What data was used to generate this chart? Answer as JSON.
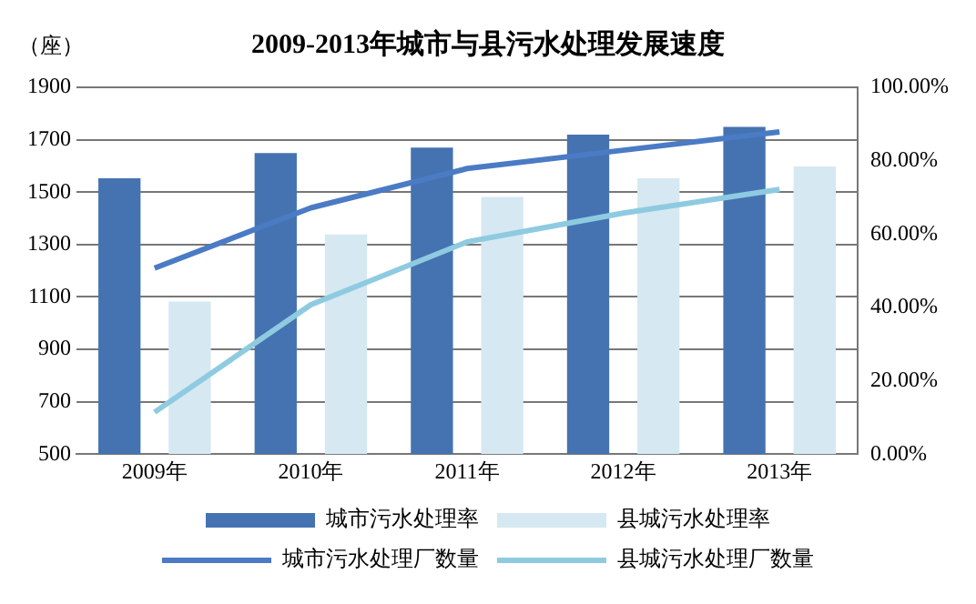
{
  "chart_data": {
    "type": "bar",
    "title": "2009-2013年城市与县污水处理发展速度",
    "ylabel": "（座）",
    "categories": [
      "2009年",
      "2010年",
      "2011年",
      "2012年",
      "2013年"
    ],
    "series": [
      {
        "name": "城市污水处理率",
        "axis": "y2",
        "color": "#4573b1",
        "values": [
          75.2,
          82.1,
          83.6,
          87.1,
          89.2
        ]
      },
      {
        "name": "县城污水处理率",
        "axis": "y2",
        "color": "#d6e8f2",
        "values": [
          41.6,
          59.9,
          70.1,
          75.2,
          78.4
        ]
      },
      {
        "name": "城市污水处理厂数量",
        "type": "line",
        "axis": "y",
        "color": "#4a7bc4",
        "values": [
          1210,
          1440,
          1590,
          1660,
          1730
        ]
      },
      {
        "name": "县城污水处理厂数量",
        "type": "line",
        "axis": "y",
        "color": "#8ecbe0",
        "values": [
          660,
          1070,
          1310,
          1420,
          1510
        ]
      }
    ],
    "ylim": [
      500,
      1900
    ],
    "yticks": [
      500,
      700,
      900,
      1100,
      1300,
      1500,
      1700,
      1900
    ],
    "y2lim": [
      0,
      100
    ],
    "y2ticks": [
      {
        "value": 0,
        "label": "0.00%"
      },
      {
        "value": 20,
        "label": "20.00%"
      },
      {
        "value": 40,
        "label": "40.00%"
      },
      {
        "value": 60,
        "label": "60.00%"
      },
      {
        "value": 80,
        "label": "80.00%"
      },
      {
        "value": 100,
        "label": "100.00%"
      }
    ],
    "grid": "y",
    "legend": "bottom",
    "marker": "none",
    "line_style": "solid"
  }
}
